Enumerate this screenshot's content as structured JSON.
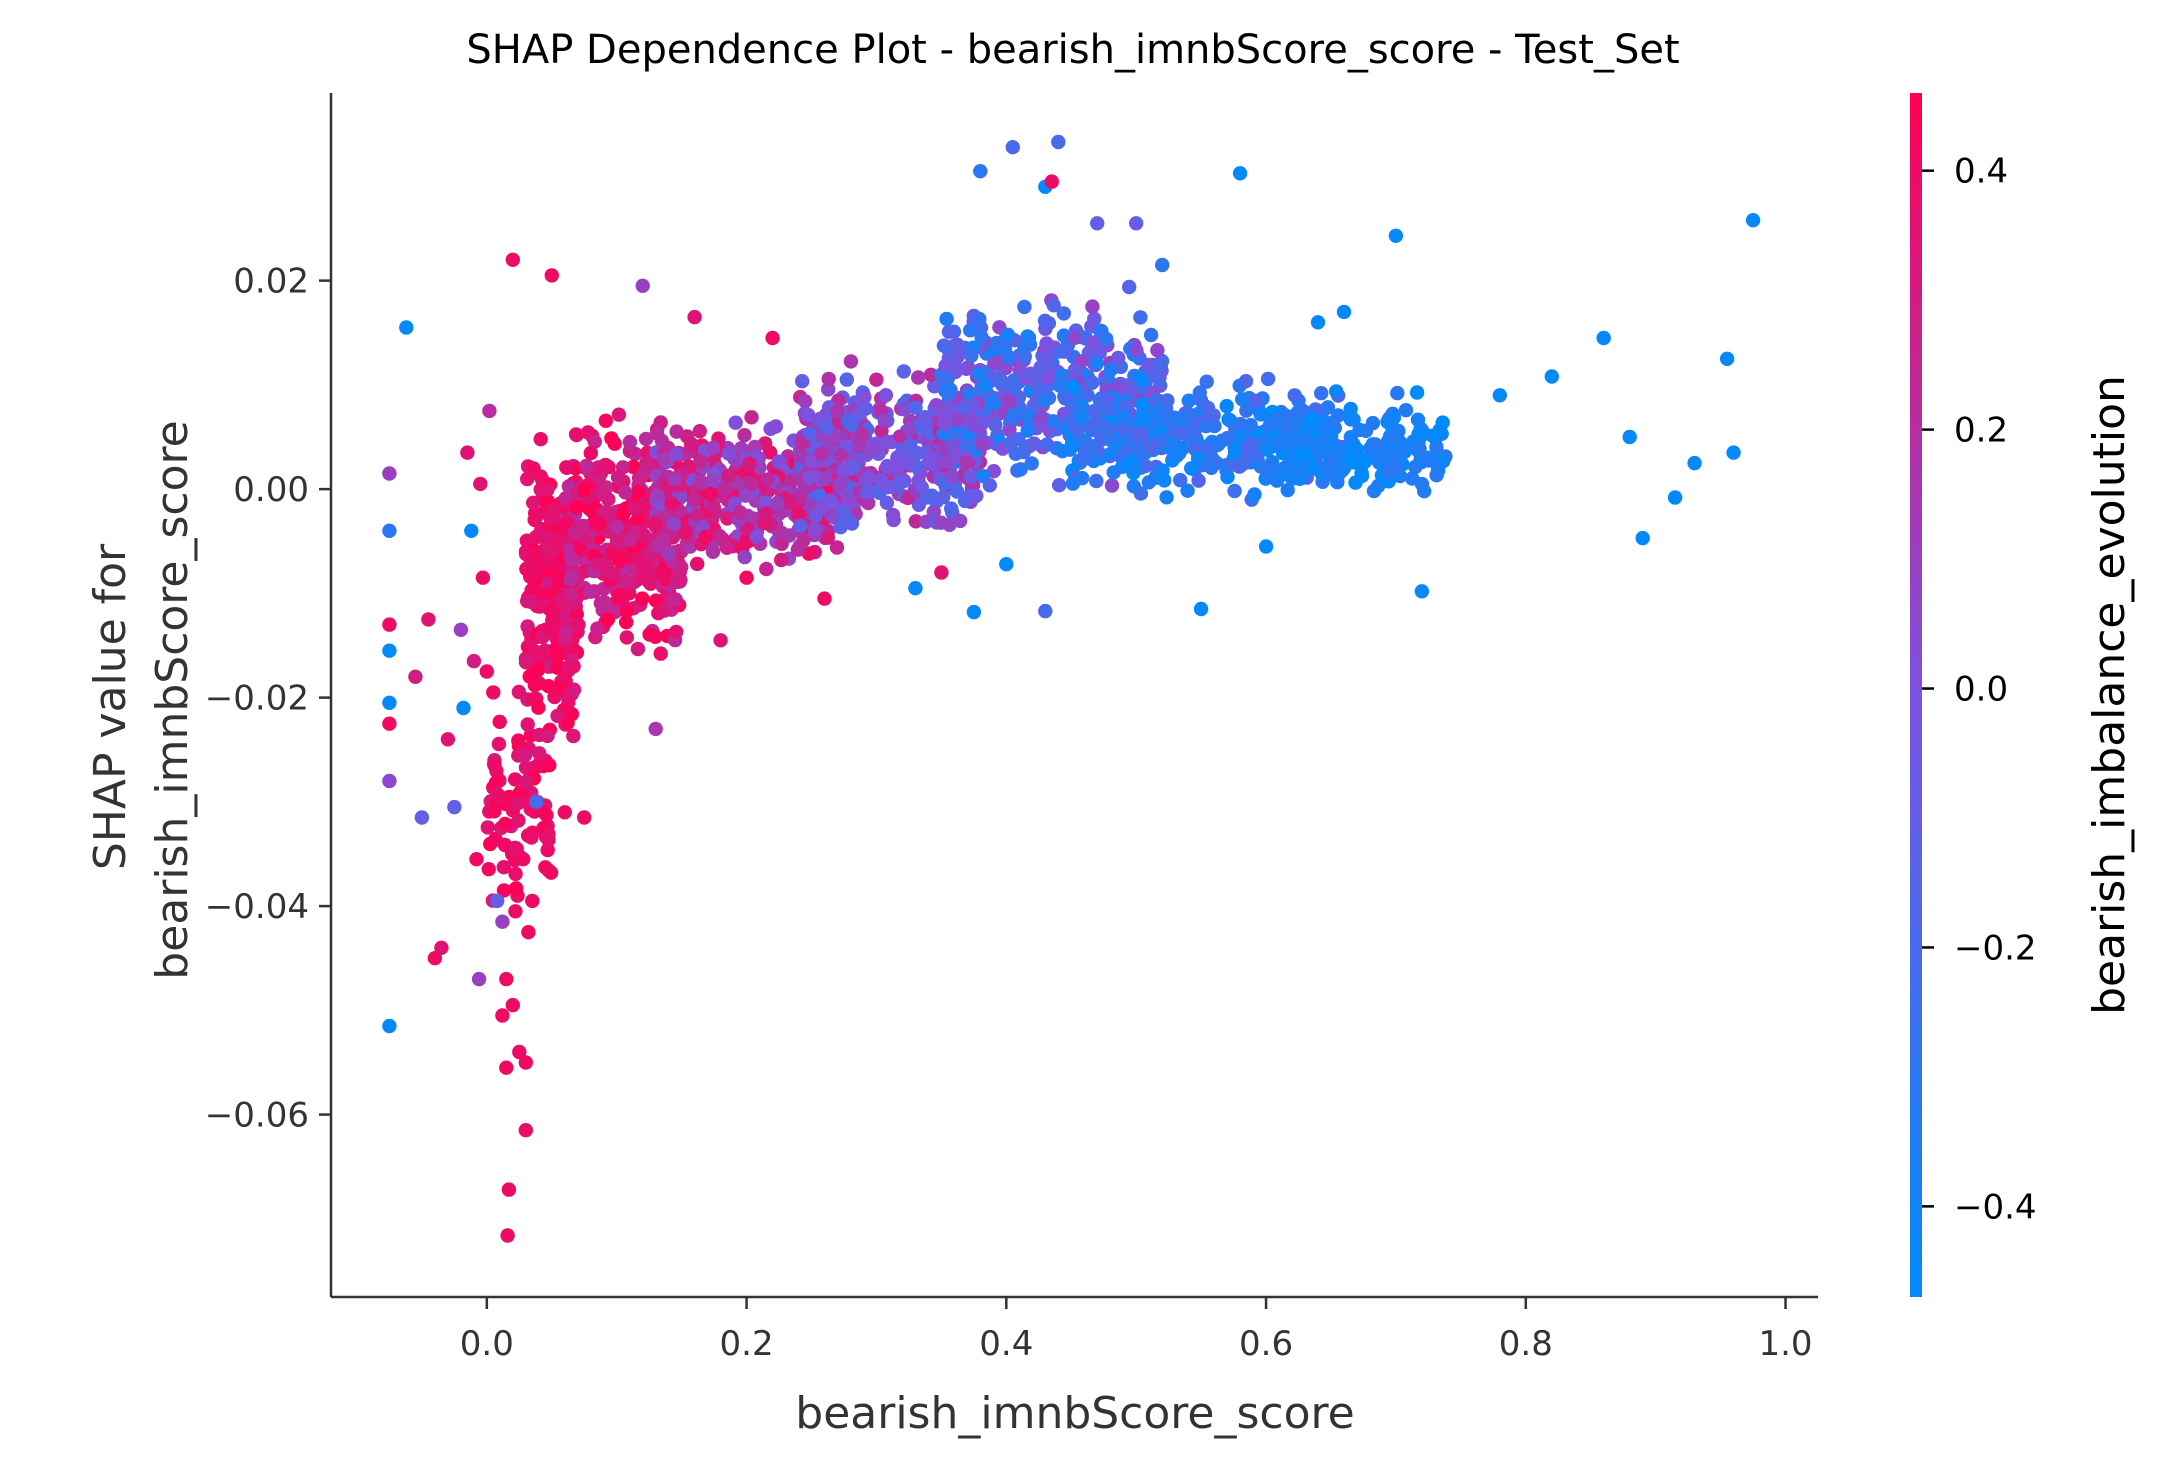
{
  "chart_data": {
    "type": "scatter",
    "title": "SHAP Dependence Plot - bearish_imnbScore_score - Test_Set",
    "xlabel": "bearish_imnbScore_score",
    "ylabel_lines": [
      "SHAP value for",
      "bearish_imnbScore_score"
    ],
    "xlim": [
      -0.12,
      1.025
    ],
    "ylim": [
      -0.0775,
      0.038
    ],
    "xticks": [
      0.0,
      0.2,
      0.4,
      0.6,
      0.8,
      1.0
    ],
    "xtick_labels": [
      "0.0",
      "0.2",
      "0.4",
      "0.6",
      "0.8",
      "1.0"
    ],
    "yticks": [
      0.02,
      0.0,
      -0.02,
      -0.04,
      -0.06
    ],
    "ytick_labels": [
      "0.02",
      "0.00",
      "−0.02",
      "−0.04",
      "−0.06"
    ],
    "grid": false,
    "colorbar": {
      "label": "bearish_imbalance_evolution",
      "range": [
        -0.47,
        0.46
      ],
      "ticks": [
        0.4,
        0.2,
        0.0,
        -0.2,
        -0.4
      ],
      "tick_labels": [
        "0.4",
        "0.2",
        "0.0",
        "−0.2",
        "−0.4"
      ],
      "color_low": "#008bfb",
      "color_mid": "#7c52e0",
      "color_high": "#ff0052"
    },
    "series": [
      {
        "points": [
          [
            -0.075,
            0.0015,
            0.1
          ],
          [
            -0.075,
            -0.004,
            -0.3
          ],
          [
            -0.075,
            -0.0155,
            -0.45
          ],
          [
            -0.075,
            -0.0205,
            -0.45
          ],
          [
            -0.075,
            -0.0225,
            0.4
          ],
          [
            -0.075,
            -0.028,
            0.05
          ],
          [
            -0.075,
            -0.0515,
            -0.45
          ],
          [
            -0.075,
            -0.013,
            0.4
          ],
          [
            -0.062,
            0.0155,
            -0.45
          ],
          [
            -0.055,
            -0.018,
            0.3
          ],
          [
            -0.05,
            -0.0315,
            -0.1
          ],
          [
            -0.045,
            -0.0125,
            0.35
          ],
          [
            -0.04,
            -0.045,
            0.4
          ],
          [
            -0.035,
            -0.044,
            0.35
          ],
          [
            -0.03,
            -0.024,
            0.35
          ],
          [
            -0.025,
            -0.0305,
            -0.1
          ],
          [
            -0.02,
            -0.0135,
            0.1
          ],
          [
            -0.018,
            -0.021,
            -0.45
          ],
          [
            -0.015,
            0.0035,
            0.35
          ],
          [
            -0.012,
            -0.004,
            -0.45
          ],
          [
            -0.01,
            -0.0165,
            0.3
          ],
          [
            -0.008,
            -0.0355,
            0.4
          ],
          [
            -0.006,
            -0.047,
            0.1
          ],
          [
            -0.005,
            0.0005,
            0.35
          ],
          [
            -0.003,
            -0.0085,
            0.4
          ],
          [
            0.0,
            -0.0175,
            0.4
          ],
          [
            0.002,
            0.0075,
            0.2
          ],
          [
            0.005,
            -0.0195,
            0.4
          ],
          [
            0.006,
            -0.0265,
            0.4
          ],
          [
            0.008,
            -0.0395,
            -0.1
          ],
          [
            0.01,
            -0.0295,
            0.4
          ],
          [
            0.012,
            -0.0415,
            0.1
          ],
          [
            0.012,
            -0.0505,
            0.4
          ],
          [
            0.015,
            -0.047,
            0.4
          ],
          [
            0.015,
            -0.0555,
            0.4
          ],
          [
            0.016,
            -0.0716,
            0.4
          ],
          [
            0.017,
            -0.0672,
            0.4
          ],
          [
            0.02,
            0.022,
            0.4
          ],
          [
            0.02,
            -0.0495,
            0.4
          ],
          [
            0.022,
            -0.0405,
            0.4
          ],
          [
            0.025,
            -0.054,
            0.4
          ],
          [
            0.028,
            -0.0355,
            0.4
          ],
          [
            0.03,
            -0.0615,
            0.4
          ],
          [
            0.03,
            -0.055,
            0.4
          ],
          [
            0.032,
            -0.0425,
            0.4
          ],
          [
            0.035,
            -0.0395,
            0.4
          ],
          [
            0.038,
            -0.03,
            -0.2
          ],
          [
            0.05,
            0.0205,
            0.4
          ],
          [
            0.06,
            -0.031,
            0.4
          ],
          [
            0.075,
            -0.0315,
            0.4
          ],
          [
            0.12,
            0.0195,
            0.1
          ],
          [
            0.13,
            -0.023,
            0.15
          ],
          [
            0.16,
            0.0165,
            0.35
          ],
          [
            0.18,
            -0.0145,
            0.35
          ],
          [
            0.2,
            -0.0085,
            0.4
          ],
          [
            0.22,
            0.0145,
            0.4
          ],
          [
            0.26,
            -0.0105,
            0.4
          ],
          [
            0.3,
            0.0105,
            0.25
          ],
          [
            0.33,
            -0.0095,
            -0.45
          ],
          [
            0.35,
            -0.008,
            0.35
          ],
          [
            0.375,
            -0.0118,
            -0.45
          ],
          [
            0.38,
            0.0305,
            -0.3
          ],
          [
            0.4,
            -0.0072,
            -0.45
          ],
          [
            0.405,
            0.0328,
            -0.2
          ],
          [
            0.43,
            0.029,
            -0.45
          ],
          [
            0.435,
            0.0295,
            0.4
          ],
          [
            0.44,
            0.0333,
            -0.2
          ],
          [
            0.43,
            -0.0117,
            -0.2
          ],
          [
            0.47,
            0.0255,
            -0.1
          ],
          [
            0.5,
            0.0255,
            -0.1
          ],
          [
            0.52,
            0.0215,
            -0.3
          ],
          [
            0.55,
            -0.0115,
            -0.45
          ],
          [
            0.58,
            0.0303,
            -0.45
          ],
          [
            0.6,
            -0.0055,
            -0.45
          ],
          [
            0.64,
            0.016,
            -0.45
          ],
          [
            0.66,
            0.017,
            -0.45
          ],
          [
            0.7,
            0.0243,
            -0.45
          ],
          [
            0.72,
            -0.0098,
            -0.45
          ],
          [
            0.78,
            0.009,
            -0.45
          ],
          [
            0.82,
            0.0108,
            -0.45
          ],
          [
            0.86,
            0.0145,
            -0.45
          ],
          [
            0.88,
            0.005,
            -0.45
          ],
          [
            0.89,
            -0.0047,
            -0.45
          ],
          [
            0.915,
            -0.0008,
            -0.45
          ],
          [
            0.93,
            0.0025,
            -0.45
          ],
          [
            0.955,
            0.0125,
            -0.45
          ],
          [
            0.96,
            0.0035,
            -0.45
          ],
          [
            0.975,
            0.0258,
            -0.45
          ]
        ]
      }
    ],
    "generated_cloud": [
      {
        "x": [
          0.03,
          0.07
        ],
        "y": [
          -0.028,
          0.007
        ],
        "c": [
          0.3,
          0.46
        ],
        "n": 260
      },
      {
        "x": [
          0.06,
          0.15
        ],
        "y": [
          -0.018,
          0.009
        ],
        "c": [
          0.2,
          0.46
        ],
        "n": 380
      },
      {
        "x": [
          0.13,
          0.27
        ],
        "y": [
          -0.009,
          0.008
        ],
        "c": [
          0.0,
          0.4
        ],
        "n": 380
      },
      {
        "x": [
          0.24,
          0.38
        ],
        "y": [
          -0.006,
          0.013
        ],
        "c": [
          -0.2,
          0.25
        ],
        "n": 380
      },
      {
        "x": [
          0.35,
          0.52
        ],
        "y": [
          -0.002,
          0.02
        ],
        "c": [
          -0.4,
          0.1
        ],
        "n": 420
      },
      {
        "x": [
          0.45,
          0.66
        ],
        "y": [
          -0.002,
          0.012
        ],
        "c": [
          -0.47,
          -0.15
        ],
        "n": 330
      },
      {
        "x": [
          0.6,
          0.74
        ],
        "y": [
          -0.002,
          0.01
        ],
        "c": [
          -0.47,
          -0.3
        ],
        "n": 170
      },
      {
        "x": [
          0.0,
          0.05
        ],
        "y": [
          -0.045,
          -0.015
        ],
        "c": [
          0.3,
          0.46
        ],
        "n": 90
      }
    ]
  }
}
